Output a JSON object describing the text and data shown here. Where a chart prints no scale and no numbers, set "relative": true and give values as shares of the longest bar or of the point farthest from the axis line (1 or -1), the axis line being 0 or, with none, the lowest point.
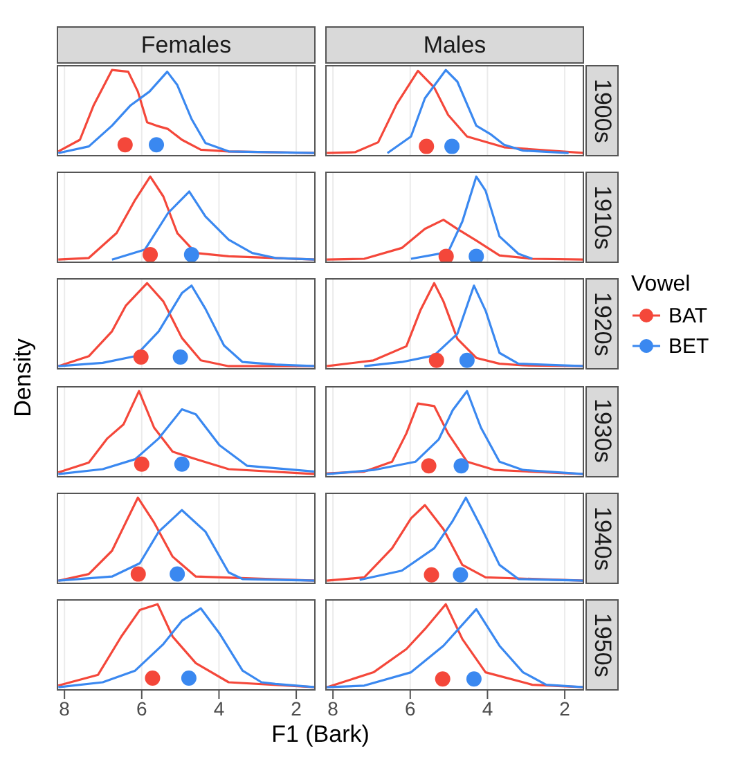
{
  "chart_data": [
    {
      "type": "line",
      "title": "Females",
      "relative": true,
      "tick_labels": false,
      "grid": "x",
      "xlim": [
        8.2,
        1.5
      ],
      "xticks": [
        8,
        6,
        4,
        2
      ],
      "series": [
        {
          "color": "#f4473a",
          "x": [
            8.16,
            7.6,
            7.25,
            6.77,
            6.35,
            6.1,
            5.86,
            5.62,
            5.32,
            4.96,
            4.47,
            3.75,
            1.5
          ],
          "values": [
            0.02,
            0.16,
            0.57,
            1,
            0.98,
            0.74,
            0.37,
            0.33,
            0.29,
            0.16,
            0.04,
            0.02,
            0
          ]
        },
        {
          "color": "#3a88f0",
          "x": [
            8.16,
            7.37,
            6.77,
            6.3,
            5.8,
            5.34,
            5.08,
            4.71,
            4.35,
            3.75,
            1.5
          ],
          "values": [
            0,
            0.08,
            0.33,
            0.57,
            0.74,
            0.98,
            0.82,
            0.41,
            0.12,
            0.02,
            0
          ]
        },
        {
          "type": "scatter",
          "marker": "circle",
          "color": "#f4473a",
          "x": [
            6.43
          ],
          "values": [
            0.1
          ]
        },
        {
          "type": "scatter",
          "marker": "circle",
          "color": "#3a88f0",
          "x": [
            5.62
          ],
          "values": [
            0.1
          ]
        }
      ]
    },
    {
      "type": "line",
      "title": "Males",
      "annotations": [
        "1900s"
      ],
      "relative": true,
      "tick_labels": false,
      "grid": "x",
      "xlim": [
        8.2,
        1.5
      ],
      "xticks": [
        8,
        6,
        4,
        2
      ],
      "series": [
        {
          "color": "#f4473a",
          "x": [
            8.16,
            7.43,
            6.83,
            6.35,
            5.8,
            5.38,
            5.02,
            4.53,
            3.57,
            1.5
          ],
          "values": [
            0,
            0.01,
            0.13,
            0.59,
            0.99,
            0.79,
            0.46,
            0.2,
            0.07,
            0
          ]
        },
        {
          "color": "#3a88f0",
          "x": [
            6.59,
            5.98,
            5.62,
            5.08,
            4.78,
            4.29,
            3.93,
            3.57,
            3.08,
            1.9
          ],
          "values": [
            0,
            0.2,
            0.66,
            1,
            0.86,
            0.33,
            0.23,
            0.1,
            0.03,
            0
          ]
        },
        {
          "type": "scatter",
          "marker": "circle",
          "color": "#f4473a",
          "x": [
            5.58
          ],
          "values": [
            0.08
          ]
        },
        {
          "type": "scatter",
          "marker": "circle",
          "color": "#3a88f0",
          "x": [
            4.92
          ],
          "values": [
            0.08
          ]
        }
      ]
    },
    {
      "type": "line",
      "relative": true,
      "tick_labels": false,
      "grid": "x",
      "xlim": [
        8.2,
        1.5
      ],
      "xticks": [
        8,
        6,
        4,
        2
      ],
      "series": [
        {
          "color": "#f4473a",
          "x": [
            8.16,
            7.37,
            6.65,
            6.17,
            5.78,
            5.44,
            5.08,
            4.6,
            3.75,
            1.5
          ],
          "values": [
            0,
            0.02,
            0.32,
            0.72,
            1,
            0.76,
            0.32,
            0.08,
            0.04,
            0
          ]
        },
        {
          "color": "#3a88f0",
          "x": [
            6.77,
            5.92,
            5.32,
            4.77,
            4.35,
            3.75,
            3.14,
            2.54,
            1.5
          ],
          "values": [
            0,
            0.12,
            0.56,
            0.82,
            0.52,
            0.24,
            0.08,
            0.02,
            0
          ]
        },
        {
          "type": "scatter",
          "marker": "circle",
          "color": "#f4473a",
          "x": [
            5.78
          ],
          "values": [
            0.06
          ]
        },
        {
          "type": "scatter",
          "marker": "circle",
          "color": "#3a88f0",
          "x": [
            4.71
          ],
          "values": [
            0.06
          ]
        }
      ]
    },
    {
      "type": "line",
      "annotations": [
        "1910s"
      ],
      "relative": true,
      "tick_labels": false,
      "grid": "x",
      "xlim": [
        8.2,
        1.5
      ],
      "xticks": [
        8,
        6,
        4,
        2
      ],
      "series": [
        {
          "color": "#f4473a",
          "x": [
            8.16,
            7.19,
            6.22,
            5.62,
            5.14,
            4.78,
            4.29,
            3.69,
            2.84,
            1.5
          ],
          "values": [
            0,
            0.01,
            0.14,
            0.37,
            0.48,
            0.37,
            0.23,
            0.05,
            0.01,
            0
          ]
        },
        {
          "color": "#3a88f0",
          "x": [
            5.98,
            5.02,
            4.65,
            4.29,
            4.05,
            3.69,
            3.2,
            2.84
          ],
          "values": [
            0.01,
            0.09,
            0.46,
            1,
            0.83,
            0.28,
            0.07,
            0.01
          ]
        },
        {
          "type": "scatter",
          "marker": "circle",
          "color": "#f4473a",
          "x": [
            5.07
          ],
          "values": [
            0.04
          ]
        },
        {
          "type": "scatter",
          "marker": "circle",
          "color": "#3a88f0",
          "x": [
            4.29
          ],
          "values": [
            0.04
          ]
        }
      ]
    },
    {
      "type": "line",
      "ylabel": "Density",
      "relative": true,
      "tick_labels": false,
      "grid": "x",
      "xlim": [
        8.2,
        1.5
      ],
      "xticks": [
        8,
        6,
        4,
        2
      ],
      "series": [
        {
          "color": "#f4473a",
          "x": [
            8.16,
            7.37,
            6.77,
            6.41,
            5.86,
            5.44,
            4.96,
            4.47,
            3.75,
            1.5
          ],
          "values": [
            0,
            0.12,
            0.42,
            0.73,
            1,
            0.78,
            0.34,
            0.07,
            0,
            0
          ]
        },
        {
          "color": "#3a88f0",
          "x": [
            8.16,
            7.01,
            6.17,
            5.56,
            4.96,
            4.71,
            4.35,
            3.87,
            3.39,
            2.54,
            1.5
          ],
          "values": [
            0,
            0.04,
            0.12,
            0.42,
            0.88,
            0.97,
            0.69,
            0.25,
            0.05,
            0.02,
            0
          ]
        },
        {
          "type": "scatter",
          "marker": "circle",
          "color": "#f4473a",
          "x": [
            6.02
          ],
          "values": [
            0.11
          ]
        },
        {
          "type": "scatter",
          "marker": "circle",
          "color": "#3a88f0",
          "x": [
            5.0
          ],
          "values": [
            0.11
          ]
        }
      ]
    },
    {
      "type": "line",
      "annotations": [
        "1920s"
      ],
      "legend": "right",
      "legend_title": "Vowel",
      "relative": true,
      "tick_labels": false,
      "grid": "x",
      "xlim": [
        8.2,
        1.5
      ],
      "xticks": [
        8,
        6,
        4,
        2
      ],
      "series": [
        {
          "name": "BAT",
          "color": "#f4473a",
          "x": [
            8.16,
            6.95,
            6.1,
            5.74,
            5.38,
            5.14,
            4.78,
            4.29,
            3.69,
            3.08,
            1.5
          ],
          "values": [
            0,
            0.07,
            0.24,
            0.67,
            1,
            0.78,
            0.33,
            0.1,
            0.03,
            0.01,
            0
          ]
        },
        {
          "name": "BET",
          "color": "#3a88f0",
          "x": [
            7.19,
            6.22,
            5.38,
            4.78,
            4.35,
            4.05,
            3.69,
            3.2,
            1.5
          ],
          "values": [
            0,
            0.05,
            0.13,
            0.39,
            0.97,
            0.67,
            0.16,
            0.03,
            0
          ]
        },
        {
          "type": "scatter",
          "marker": "circle",
          "color": "#f4473a",
          "x": [
            5.32
          ],
          "values": [
            0.07
          ]
        },
        {
          "type": "scatter",
          "marker": "circle",
          "color": "#3a88f0",
          "x": [
            4.53
          ],
          "values": [
            0.07
          ]
        }
      ]
    },
    {
      "type": "line",
      "relative": true,
      "tick_labels": false,
      "grid": "x",
      "xlim": [
        8.2,
        1.5
      ],
      "xticks": [
        8,
        6,
        4,
        2
      ],
      "series": [
        {
          "color": "#f4473a",
          "x": [
            8.16,
            7.37,
            6.89,
            6.47,
            6.07,
            5.68,
            5.2,
            4.6,
            3.75,
            1.5
          ],
          "values": [
            0.02,
            0.14,
            0.43,
            0.6,
            1,
            0.56,
            0.27,
            0.18,
            0.06,
            0
          ]
        },
        {
          "color": "#3a88f0",
          "x": [
            8.16,
            7.01,
            6.17,
            5.56,
            4.96,
            4.6,
            3.99,
            3.27,
            1.5
          ],
          "values": [
            0,
            0.06,
            0.18,
            0.43,
            0.78,
            0.72,
            0.35,
            0.1,
            0.03
          ]
        },
        {
          "type": "scatter",
          "marker": "circle",
          "color": "#f4473a",
          "x": [
            6.0
          ],
          "values": [
            0.12
          ]
        },
        {
          "type": "scatter",
          "marker": "circle",
          "color": "#3a88f0",
          "x": [
            4.96
          ],
          "values": [
            0.12
          ]
        }
      ]
    },
    {
      "type": "line",
      "annotations": [
        "1930s"
      ],
      "relative": true,
      "tick_labels": false,
      "grid": "x",
      "xlim": [
        8.2,
        1.5
      ],
      "xticks": [
        8,
        6,
        4,
        2
      ],
      "series": [
        {
          "color": "#f4473a",
          "x": [
            8.16,
            7.19,
            6.47,
            6.1,
            5.8,
            5.38,
            5.02,
            4.53,
            3.81,
            1.5
          ],
          "values": [
            0.01,
            0.03,
            0.15,
            0.49,
            0.85,
            0.82,
            0.49,
            0.15,
            0.05,
            0
          ]
        },
        {
          "color": "#3a88f0",
          "x": [
            8.16,
            6.95,
            5.86,
            5.26,
            4.9,
            4.53,
            4.17,
            3.69,
            3.08,
            1.5
          ],
          "values": [
            0,
            0.05,
            0.15,
            0.42,
            0.77,
            1,
            0.56,
            0.15,
            0.05,
            0
          ]
        },
        {
          "type": "scatter",
          "marker": "circle",
          "color": "#f4473a",
          "x": [
            5.52
          ],
          "values": [
            0.1
          ]
        },
        {
          "type": "scatter",
          "marker": "circle",
          "color": "#3a88f0",
          "x": [
            4.68
          ],
          "values": [
            0.1
          ]
        }
      ]
    },
    {
      "type": "line",
      "relative": true,
      "tick_labels": false,
      "grid": "x",
      "xlim": [
        8.2,
        1.5
      ],
      "xticks": [
        8,
        6,
        4,
        2
      ],
      "series": [
        {
          "color": "#f4473a",
          "x": [
            8.16,
            7.37,
            6.77,
            6.1,
            5.68,
            5.2,
            4.6,
            1.5
          ],
          "values": [
            0,
            0.08,
            0.36,
            1,
            0.7,
            0.29,
            0.05,
            0
          ]
        },
        {
          "color": "#3a88f0",
          "x": [
            8.16,
            6.77,
            6.05,
            5.56,
            4.96,
            4.35,
            3.75,
            3.39,
            1.5
          ],
          "values": [
            0,
            0.05,
            0.21,
            0.59,
            0.85,
            0.59,
            0.1,
            0.02,
            0
          ]
        },
        {
          "type": "scatter",
          "marker": "circle",
          "color": "#f4473a",
          "x": [
            6.09
          ],
          "values": [
            0.08
          ]
        },
        {
          "type": "scatter",
          "marker": "circle",
          "color": "#3a88f0",
          "x": [
            5.08
          ],
          "values": [
            0.08
          ]
        }
      ]
    },
    {
      "type": "line",
      "annotations": [
        "1940s"
      ],
      "relative": true,
      "tick_labels": false,
      "grid": "x",
      "xlim": [
        8.2,
        1.5
      ],
      "xticks": [
        8,
        6,
        4,
        2
      ],
      "series": [
        {
          "color": "#f4473a",
          "x": [
            8.16,
            7.19,
            6.47,
            5.98,
            5.62,
            5.14,
            4.65,
            4.05,
            1.5
          ],
          "values": [
            0,
            0.04,
            0.39,
            0.75,
            0.91,
            0.62,
            0.19,
            0.04,
            0
          ]
        },
        {
          "color": "#3a88f0",
          "x": [
            7.31,
            6.22,
            5.38,
            4.9,
            4.56,
            4.17,
            3.69,
            3.2,
            1.5
          ],
          "values": [
            0.01,
            0.12,
            0.39,
            0.72,
            1,
            0.65,
            0.19,
            0.02,
            0
          ]
        },
        {
          "type": "scatter",
          "marker": "circle",
          "color": "#f4473a",
          "x": [
            5.45
          ],
          "values": [
            0.07
          ]
        },
        {
          "type": "scatter",
          "marker": "circle",
          "color": "#3a88f0",
          "x": [
            4.7
          ],
          "values": [
            0.07
          ]
        }
      ]
    },
    {
      "type": "line",
      "xlabel": "F1 (Bark)",
      "relative": true,
      "tick_labels": "x",
      "grid": "x",
      "xlim": [
        8.2,
        1.5
      ],
      "xticks": [
        8,
        6,
        4,
        2
      ],
      "series": [
        {
          "color": "#f4473a",
          "x": [
            8.16,
            7.13,
            6.53,
            6.05,
            5.59,
            5.2,
            4.6,
            3.75,
            1.5
          ],
          "values": [
            0.02,
            0.15,
            0.61,
            0.93,
            1,
            0.61,
            0.29,
            0.06,
            0
          ]
        },
        {
          "color": "#3a88f0",
          "x": [
            8.16,
            7.01,
            6.17,
            5.44,
            4.96,
            4.47,
            3.99,
            3.39,
            2.9,
            2.54,
            1.5
          ],
          "values": [
            0,
            0.06,
            0.2,
            0.52,
            0.8,
            0.95,
            0.65,
            0.2,
            0.06,
            0.04,
            0
          ]
        },
        {
          "type": "scatter",
          "marker": "circle",
          "color": "#f4473a",
          "x": [
            5.72
          ],
          "values": [
            0.11
          ]
        },
        {
          "type": "scatter",
          "marker": "circle",
          "color": "#3a88f0",
          "x": [
            4.78
          ],
          "values": [
            0.11
          ]
        }
      ]
    },
    {
      "type": "line",
      "annotations": [
        "1950s"
      ],
      "relative": true,
      "tick_labels": "x",
      "grid": "x",
      "xlim": [
        8.2,
        1.5
      ],
      "xticks": [
        8,
        6,
        4,
        2
      ],
      "series": [
        {
          "color": "#f4473a",
          "x": [
            8.16,
            6.95,
            6.1,
            5.62,
            5.08,
            4.65,
            4.05,
            2.84,
            1.5
          ],
          "values": [
            0,
            0.18,
            0.46,
            0.7,
            1,
            0.58,
            0.18,
            0.03,
            0
          ]
        },
        {
          "color": "#3a88f0",
          "x": [
            8.16,
            7.19,
            5.98,
            5.14,
            4.29,
            3.69,
            3.08,
            2.48,
            1.5
          ],
          "values": [
            0,
            0.02,
            0.18,
            0.5,
            0.94,
            0.5,
            0.18,
            0.03,
            0
          ]
        },
        {
          "type": "scatter",
          "marker": "circle",
          "color": "#f4473a",
          "x": [
            5.16
          ],
          "values": [
            0.1
          ]
        },
        {
          "type": "scatter",
          "marker": "circle",
          "color": "#3a88f0",
          "x": [
            4.35
          ],
          "values": [
            0.1
          ]
        }
      ]
    }
  ]
}
